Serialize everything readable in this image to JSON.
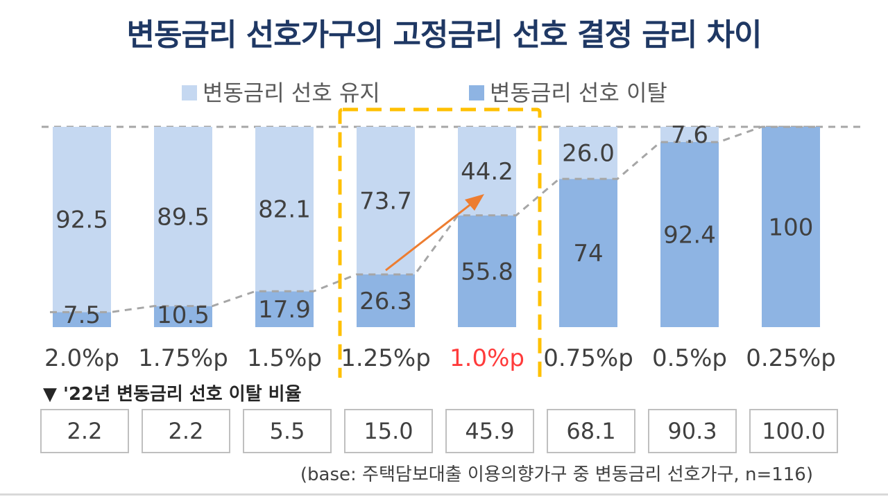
{
  "chart_data": {
    "type": "bar",
    "stacked": true,
    "percent_stacked": true,
    "title": "변동금리 선호가구의 고정금리 선호 결정 금리 차이",
    "categories": [
      "2.0%p",
      "1.75%p",
      "1.5%p",
      "1.25%p",
      "1.0%p",
      "0.75%p",
      "0.5%p",
      "0.25%p"
    ],
    "highlight_category": "1.0%p",
    "series": [
      {
        "name": "변동금리 선호 유지",
        "values": [
          92.5,
          89.5,
          82.1,
          73.7,
          44.2,
          26.0,
          7.6,
          null
        ],
        "color": "#c5d8f1"
      },
      {
        "name": "변동금리 선호 이탈",
        "values": [
          7.5,
          10.5,
          17.9,
          26.3,
          55.8,
          74.0,
          92.4,
          100
        ],
        "color": "#8eb4e3"
      }
    ],
    "ylim": [
      0,
      100
    ],
    "legend_position": "top",
    "grid": false,
    "annotations": [
      "dashed trend line connecting tops of 이탈 bars",
      "dashed highlight box around 1.25%p and 1.0%p",
      "orange arrow from 1.25%p to 1.0%p"
    ],
    "label_colors": {
      "default": "#404040",
      "highlight": "#ff3b3b"
    }
  },
  "sub_table": {
    "title": "▼ '22년 변동금리 선호 이탈 비율",
    "values": [
      "2.2",
      "2.2",
      "5.5",
      "15.0",
      "45.9",
      "68.1",
      "90.3",
      "100.0"
    ]
  },
  "footnote": "(base: 주택담보대출 이용의향가구 중 변동금리 선호가구, n=116)",
  "colors": {
    "title": "#1f3864",
    "keep": "#c5d8f1",
    "leave": "#8eb4e3",
    "highlight_box": "#ffc000",
    "arrow": "#ed7d31",
    "trend": "#a6a6a6"
  }
}
